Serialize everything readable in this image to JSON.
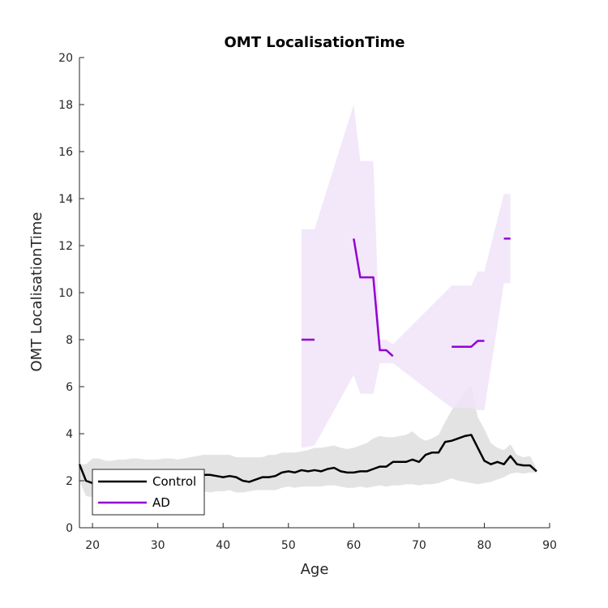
{
  "chart_data": {
    "type": "line",
    "title": "OMT LocalisationTime",
    "xlabel": "Age",
    "ylabel": "OMT LocalisationTime",
    "xlim": [
      18,
      90
    ],
    "ylim": [
      0,
      20
    ],
    "x_ticks": [
      20,
      30,
      40,
      50,
      60,
      70,
      80,
      90
    ],
    "y_ticks": [
      0,
      2,
      4,
      6,
      8,
      10,
      12,
      14,
      16,
      18,
      20
    ],
    "grid": false,
    "legend_position": "bottom-left",
    "series": [
      {
        "name": "Control",
        "color": "#000000",
        "band_color": "#e3e3e3",
        "x": [
          18,
          19,
          20,
          21,
          22,
          23,
          24,
          25,
          26,
          27,
          28,
          29,
          30,
          31,
          32,
          33,
          34,
          35,
          36,
          37,
          38,
          39,
          40,
          41,
          42,
          43,
          44,
          45,
          46,
          47,
          48,
          49,
          50,
          51,
          52,
          53,
          54,
          55,
          56,
          57,
          58,
          59,
          60,
          61,
          62,
          63,
          64,
          65,
          66,
          67,
          68,
          69,
          70,
          71,
          72,
          73,
          74,
          75,
          76,
          77,
          78,
          79,
          80,
          81,
          82,
          83,
          84,
          85,
          86,
          87,
          88
        ],
        "y": [
          2.7,
          2.0,
          1.9,
          2.1,
          2.15,
          2.05,
          2.1,
          2.2,
          2.15,
          2.1,
          2.15,
          2.2,
          2.1,
          2.15,
          2.1,
          2.2,
          2.25,
          2.2,
          2.3,
          2.25,
          2.25,
          2.2,
          2.15,
          2.2,
          2.15,
          2.0,
          1.95,
          2.05,
          2.15,
          2.15,
          2.2,
          2.35,
          2.4,
          2.35,
          2.45,
          2.4,
          2.45,
          2.4,
          2.5,
          2.55,
          2.4,
          2.35,
          2.35,
          2.4,
          2.4,
          2.5,
          2.6,
          2.6,
          2.8,
          2.8,
          2.8,
          2.9,
          2.8,
          3.1,
          3.2,
          3.2,
          3.65,
          3.7,
          3.8,
          3.9,
          3.95,
          3.4,
          2.85,
          2.7,
          2.8,
          2.7,
          3.05,
          2.7,
          2.65,
          2.65,
          2.4
        ],
        "lower": [
          2.0,
          1.35,
          1.3,
          1.4,
          1.45,
          1.5,
          1.5,
          1.55,
          1.5,
          1.5,
          1.55,
          1.55,
          1.5,
          1.5,
          1.45,
          1.5,
          1.55,
          1.5,
          1.55,
          1.55,
          1.5,
          1.55,
          1.55,
          1.6,
          1.5,
          1.5,
          1.55,
          1.6,
          1.6,
          1.6,
          1.6,
          1.7,
          1.75,
          1.7,
          1.75,
          1.75,
          1.75,
          1.75,
          1.8,
          1.8,
          1.75,
          1.7,
          1.7,
          1.75,
          1.7,
          1.75,
          1.8,
          1.75,
          1.8,
          1.8,
          1.85,
          1.85,
          1.8,
          1.85,
          1.85,
          1.9,
          2.0,
          2.1,
          2.0,
          1.95,
          1.9,
          1.85,
          1.9,
          1.95,
          2.05,
          2.15,
          2.3,
          2.35,
          2.3,
          2.35,
          2.35
        ],
        "upper": [
          2.7,
          2.7,
          2.95,
          2.95,
          2.85,
          2.85,
          2.9,
          2.9,
          2.95,
          2.95,
          2.9,
          2.9,
          2.9,
          2.95,
          2.95,
          2.9,
          2.95,
          3.0,
          3.05,
          3.1,
          3.1,
          3.1,
          3.1,
          3.1,
          3.0,
          3.0,
          3.0,
          3.0,
          3.0,
          3.1,
          3.1,
          3.2,
          3.2,
          3.2,
          3.25,
          3.3,
          3.4,
          3.4,
          3.45,
          3.5,
          3.4,
          3.35,
          3.4,
          3.5,
          3.6,
          3.8,
          3.9,
          3.85,
          3.85,
          3.9,
          3.95,
          4.1,
          3.85,
          3.7,
          3.8,
          3.95,
          4.5,
          5.0,
          5.4,
          5.8,
          6.05,
          4.7,
          4.2,
          3.6,
          3.4,
          3.3,
          3.55,
          3.1,
          3.0,
          3.05,
          2.5
        ]
      },
      {
        "name": "AD",
        "color": "#9400d3",
        "band_color": "#f0e4f8",
        "segments": [
          {
            "x": [
              52,
              54
            ],
            "y": [
              8.0,
              8.0
            ]
          },
          {
            "x": [
              60,
              61,
              62,
              63,
              64,
              65,
              66
            ],
            "y": [
              12.3,
              10.65,
              10.65,
              10.65,
              7.55,
              7.55,
              7.3
            ]
          },
          {
            "x": [
              75,
              76,
              77,
              78,
              79,
              80
            ],
            "y": [
              7.7,
              7.7,
              7.7,
              7.7,
              7.95,
              7.95
            ]
          },
          {
            "x": [
              83,
              84
            ],
            "y": [
              12.3,
              12.3
            ]
          }
        ],
        "band": {
          "x": [
            52,
            54,
            60,
            61,
            62,
            63,
            64,
            65,
            66,
            75,
            76,
            77,
            78,
            79,
            80,
            83,
            84
          ],
          "lower": [
            3.4,
            3.5,
            6.5,
            5.7,
            5.7,
            5.7,
            7.0,
            7.0,
            7.0,
            5.1,
            5.1,
            5.1,
            5.1,
            5.0,
            5.0,
            10.4,
            10.4
          ],
          "upper": [
            12.7,
            12.7,
            18.0,
            15.6,
            15.6,
            15.6,
            8.0,
            8.0,
            7.8,
            10.3,
            10.3,
            10.3,
            10.3,
            10.9,
            10.9,
            14.2,
            14.2
          ]
        }
      }
    ]
  }
}
